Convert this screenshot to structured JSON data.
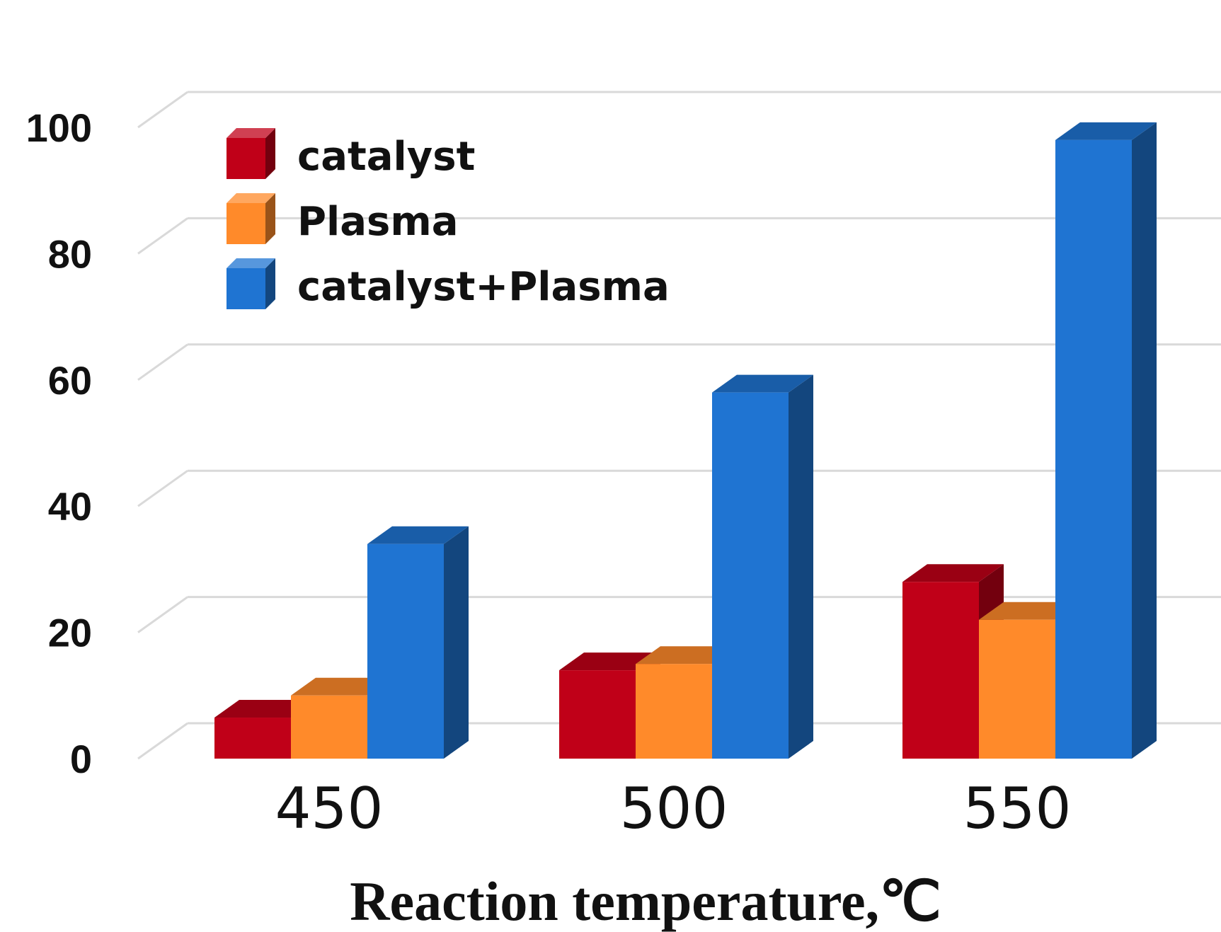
{
  "chart_data": {
    "type": "bar",
    "style": "3d-clustered-column",
    "title": "",
    "xlabel": "Reaction temperature,℃",
    "ylabel": "",
    "categories": [
      "450",
      "500",
      "550"
    ],
    "ylim": [
      0,
      100
    ],
    "yticks": [
      0,
      20,
      40,
      60,
      80,
      100
    ],
    "grid": true,
    "legend_position": "top-left",
    "series": [
      {
        "name": "catalyst",
        "color": "#c00018",
        "values": [
          6.5,
          14,
          28
        ]
      },
      {
        "name": "Plasma",
        "color": "#ff8a2a",
        "values": [
          10,
          15,
          22
        ]
      },
      {
        "name": "catalyst+Plasma",
        "color": "#1f74d2",
        "values": [
          34,
          58,
          98
        ]
      }
    ]
  }
}
